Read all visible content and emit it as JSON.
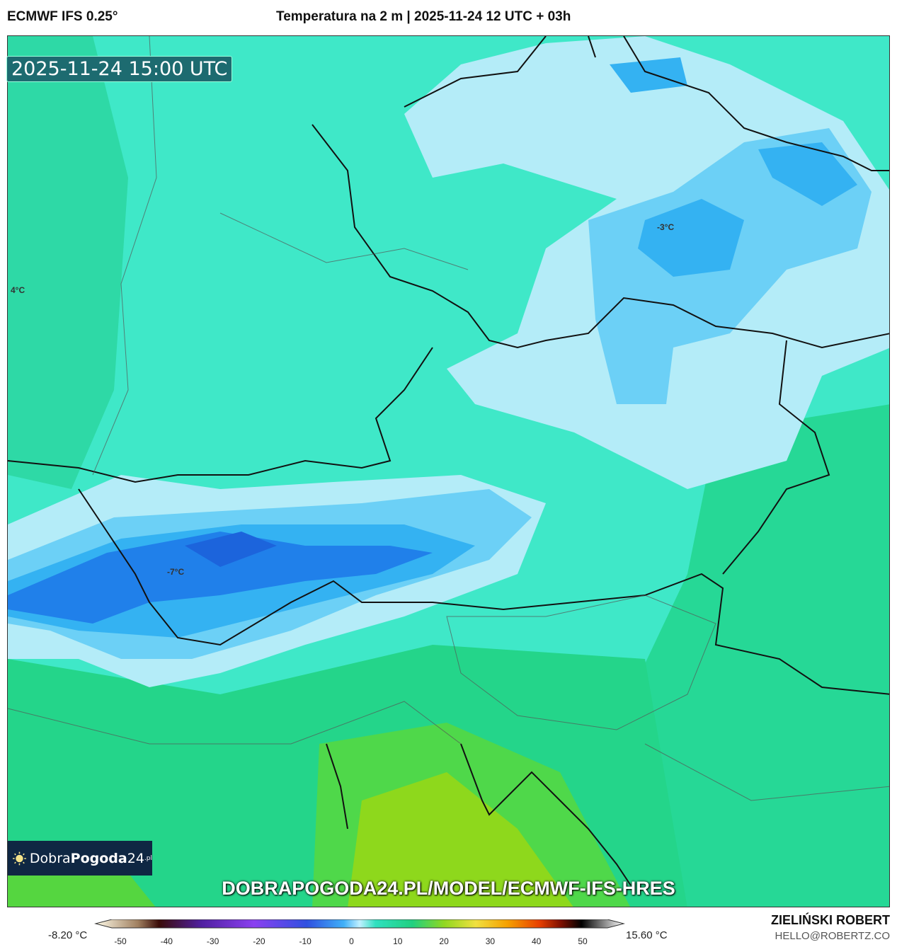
{
  "header": {
    "model": "ECMWF IFS 0.25°",
    "title": "Temperatura na 2 m | 2025-11-24 12 UTC + 03h"
  },
  "map": {
    "valid_time": "2025-11-24 15:00 UTC",
    "labels": [
      "4°C",
      "-3°C",
      "-7°C"
    ],
    "colors": {
      "base": "#3fe8c8",
      "light_blue": "#b4ecf8",
      "blue": "#6cd0f6",
      "mid_blue": "#34b2f2",
      "deep_blue": "#2080ea",
      "green": "#22d88c",
      "yellow_green": "#8ed81c"
    }
  },
  "logo": {
    "text_regular": "Dobra",
    "text_bold": "Pogoda",
    "text_num": "24",
    "text_suffix": ".pl"
  },
  "url": "DOBRAPOGODA24.PL/MODEL/ECMWF-IFS-HRES",
  "colorbar": {
    "min_label": "-8.20 °C",
    "max_label": "15.60 °C",
    "ticks": [
      "-50",
      "-40",
      "-30",
      "-20",
      "-10",
      "0",
      "10",
      "20",
      "30",
      "40",
      "50"
    ]
  },
  "footer": {
    "author": "ZIELIŃSKI ROBERT",
    "email": "HELLO@ROBERTZ.CO"
  }
}
